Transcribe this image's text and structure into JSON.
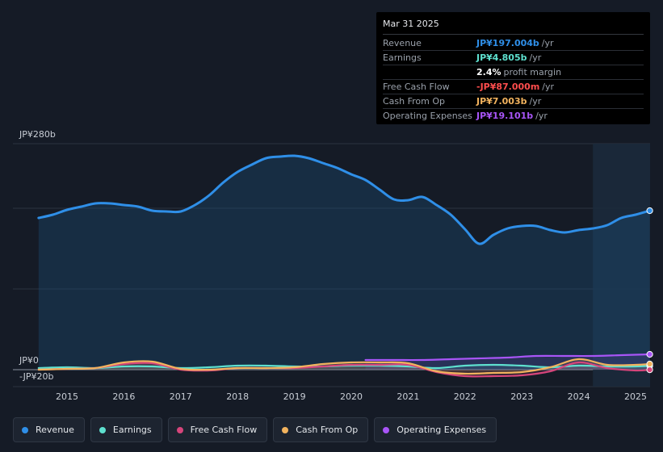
{
  "tooltip": {
    "date": "Mar 31 2025",
    "rows": [
      {
        "label": "Revenue",
        "value": "JP¥197.004b",
        "unit": "/yr",
        "color": "#2f8fe8"
      },
      {
        "label": "Earnings",
        "value": "JP¥4.805b",
        "unit": "/yr",
        "color": "#5ee0cf"
      },
      {
        "label": "",
        "value": "2.4%",
        "unit": "profit margin",
        "color": "#ffffff"
      },
      {
        "label": "Free Cash Flow",
        "value": "-JP¥87.000m",
        "unit": "/yr",
        "color": "#ff4d4d"
      },
      {
        "label": "Cash From Op",
        "value": "JP¥7.003b",
        "unit": "/yr",
        "color": "#f2b35e"
      },
      {
        "label": "Operating Expenses",
        "value": "JP¥19.101b",
        "unit": "/yr",
        "color": "#a855f7"
      }
    ]
  },
  "legend": [
    {
      "label": "Revenue",
      "color": "#2f8fe8"
    },
    {
      "label": "Earnings",
      "color": "#5ee0cf"
    },
    {
      "label": "Free Cash Flow",
      "color": "#d6457b"
    },
    {
      "label": "Cash From Op",
      "color": "#f2b35e"
    },
    {
      "label": "Operating Expenses",
      "color": "#a855f7"
    }
  ],
  "chart_data": {
    "type": "area",
    "title": "",
    "xlabel": "",
    "ylabel": "",
    "y_tick_labels": [
      "JP¥280b",
      "JP¥0",
      "-JP¥20b"
    ],
    "x_tick_labels": [
      "2015",
      "2016",
      "2017",
      "2018",
      "2019",
      "2020",
      "2021",
      "2022",
      "2023",
      "2024",
      "2025"
    ],
    "x_ticks": [
      2015,
      2016,
      2017,
      2018,
      2019,
      2020,
      2021,
      2022,
      2023,
      2024,
      2025
    ],
    "xlim": [
      2014.25,
      2025.55
    ],
    "ylim": [
      -20,
      280
    ],
    "forecast_region_start": 2024.25,
    "series": [
      {
        "name": "Revenue",
        "color": "#2f8fe8",
        "x": [
          2014.5,
          2014.75,
          2015,
          2015.25,
          2015.5,
          2015.75,
          2016,
          2016.25,
          2016.5,
          2016.75,
          2017,
          2017.25,
          2017.5,
          2017.75,
          2018,
          2018.25,
          2018.5,
          2018.75,
          2019,
          2019.25,
          2019.5,
          2019.75,
          2020,
          2020.25,
          2020.5,
          2020.75,
          2021,
          2021.25,
          2021.5,
          2021.75,
          2022,
          2022.25,
          2022.5,
          2022.75,
          2023,
          2023.25,
          2023.5,
          2023.75,
          2024,
          2024.25,
          2024.5,
          2024.75,
          2025,
          2025.25
        ],
        "values": [
          188,
          192,
          198,
          202,
          206,
          206,
          204,
          202,
          197,
          196,
          196,
          204,
          216,
          232,
          245,
          254,
          262,
          264,
          265,
          262,
          256,
          250,
          242,
          235,
          223,
          211,
          210,
          214,
          204,
          192,
          174,
          156,
          167,
          175,
          178,
          178,
          173,
          170,
          173,
          175,
          179,
          188,
          192,
          197
        ]
      },
      {
        "name": "Earnings",
        "color": "#5ee0cf",
        "x": [
          2014.5,
          2015,
          2015.5,
          2016,
          2016.5,
          2017,
          2017.5,
          2018,
          2018.5,
          2019,
          2019.5,
          2020,
          2020.5,
          2021,
          2021.5,
          2022,
          2022.5,
          2023,
          2023.5,
          2024,
          2024.5,
          2025,
          2025.25
        ],
        "values": [
          2,
          3,
          2,
          4,
          4,
          2,
          3,
          5,
          5,
          4,
          4,
          5,
          5,
          4,
          2,
          5,
          6,
          5,
          3,
          5,
          4,
          4,
          4.8
        ]
      },
      {
        "name": "Free Cash Flow",
        "color": "#d6457b",
        "x": [
          2014.5,
          2015,
          2015.5,
          2016,
          2016.5,
          2017,
          2017.5,
          2018,
          2018.5,
          2019,
          2019.5,
          2020,
          2020.5,
          2021,
          2021.5,
          2022,
          2022.5,
          2023,
          2023.5,
          2024,
          2024.5,
          2025,
          2025.25
        ],
        "values": [
          0,
          1,
          2,
          7,
          8,
          0,
          -1,
          2,
          2,
          2,
          4,
          6,
          6,
          6,
          -3,
          -8,
          -8,
          -7,
          -2,
          9,
          2,
          -1,
          -0.1
        ]
      },
      {
        "name": "Cash From Op",
        "color": "#f2b35e",
        "x": [
          2014.5,
          2015,
          2015.5,
          2016,
          2016.5,
          2017,
          2017.5,
          2018,
          2018.5,
          2019,
          2019.5,
          2020,
          2020.5,
          2021,
          2021.5,
          2022,
          2022.5,
          2023,
          2023.5,
          2024,
          2024.5,
          2025,
          2025.25
        ],
        "values": [
          0,
          1,
          2,
          9,
          10,
          1,
          0,
          2,
          2,
          3,
          7,
          9,
          9,
          8,
          -2,
          -5,
          -4,
          -3,
          3,
          13,
          6,
          6,
          7
        ]
      },
      {
        "name": "Operating Expenses",
        "color": "#a855f7",
        "x": [
          2020.25,
          2020.75,
          2021.25,
          2021.75,
          2022.25,
          2022.75,
          2023.25,
          2023.75,
          2024.25,
          2024.75,
          2025.25
        ],
        "values": [
          12,
          12,
          12,
          13,
          14,
          15,
          17,
          17,
          17,
          18,
          19
        ]
      }
    ]
  }
}
